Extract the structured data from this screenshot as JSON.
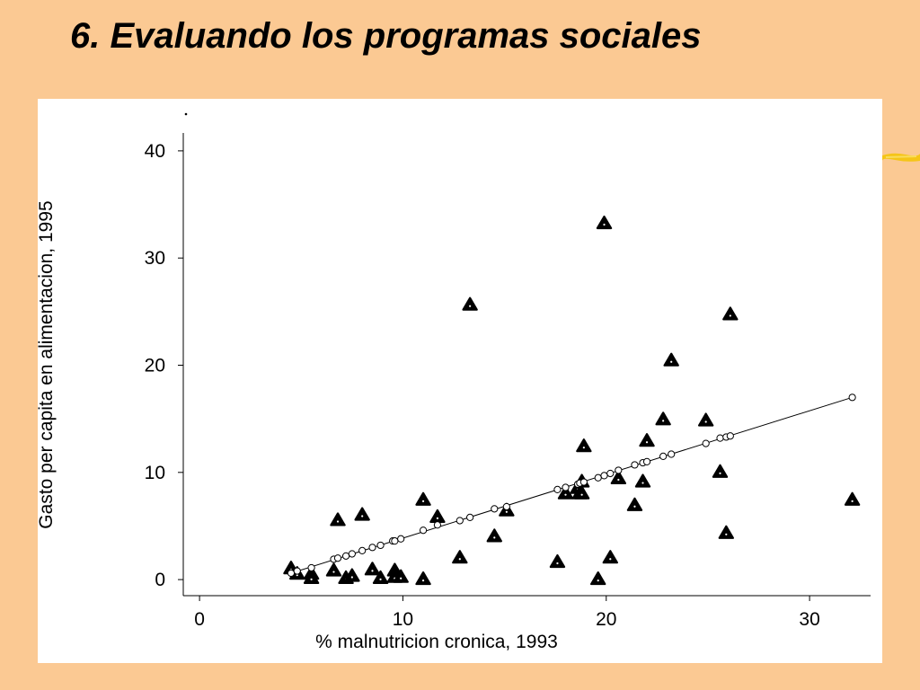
{
  "slide": {
    "title": "6.  Evaluando los programas sociales"
  },
  "colors": {
    "background": "#fbc993",
    "plot_background": "#ffffff",
    "accent_stroke": "#f5c518"
  },
  "chart_data": {
    "type": "scatter",
    "title": "",
    "xlabel": "% malnutricion cronica, 1993",
    "ylabel": "Gasto per capita en alimentacion, 1995",
    "xlim": [
      -0.8,
      33
    ],
    "ylim": [
      -1.5,
      41.5
    ],
    "xticks": [
      0,
      10,
      20,
      30
    ],
    "yticks": [
      0,
      10,
      20,
      30,
      40
    ],
    "grid": false,
    "legend": "none",
    "series": [
      {
        "marker": "triangle",
        "points": [
          [
            4.5,
            1.0
          ],
          [
            4.8,
            0.5
          ],
          [
            5.5,
            0.5
          ],
          [
            5.5,
            0.1
          ],
          [
            6.6,
            0.8
          ],
          [
            6.8,
            5.5
          ],
          [
            7.2,
            0.1
          ],
          [
            7.5,
            0.3
          ],
          [
            8.0,
            6.0
          ],
          [
            8.5,
            0.9
          ],
          [
            8.9,
            0.1
          ],
          [
            9.6,
            0.8
          ],
          [
            9.6,
            0.2
          ],
          [
            9.9,
            0.2
          ],
          [
            11.0,
            7.4
          ],
          [
            11.0,
            0.0
          ],
          [
            11.7,
            5.8
          ],
          [
            12.8,
            2.0
          ],
          [
            13.3,
            25.6
          ],
          [
            14.5,
            4.0
          ],
          [
            15.1,
            6.4
          ],
          [
            17.6,
            1.6
          ],
          [
            18.0,
            8.0
          ],
          [
            18.6,
            8.5
          ],
          [
            18.7,
            8.0
          ],
          [
            18.8,
            8.0
          ],
          [
            18.8,
            9.1
          ],
          [
            18.9,
            12.4
          ],
          [
            19.6,
            0.0
          ],
          [
            19.9,
            33.2
          ],
          [
            20.2,
            2.0
          ],
          [
            20.6,
            9.4
          ],
          [
            21.4,
            6.9
          ],
          [
            21.8,
            9.1
          ],
          [
            22.0,
            12.9
          ],
          [
            22.8,
            14.9
          ],
          [
            23.2,
            20.4
          ],
          [
            24.9,
            14.8
          ],
          [
            25.6,
            10.0
          ],
          [
            25.9,
            4.3
          ],
          [
            26.1,
            24.7
          ],
          [
            32.1,
            7.4
          ]
        ]
      },
      {
        "marker": "circle",
        "points": [
          [
            4.5,
            0.6
          ],
          [
            4.8,
            0.8
          ],
          [
            5.5,
            1.1
          ],
          [
            6.6,
            1.9
          ],
          [
            6.8,
            2.0
          ],
          [
            7.2,
            2.2
          ],
          [
            7.5,
            2.4
          ],
          [
            8.0,
            2.7
          ],
          [
            8.5,
            3.0
          ],
          [
            8.9,
            3.2
          ],
          [
            9.5,
            3.6
          ],
          [
            9.6,
            3.6
          ],
          [
            9.9,
            3.8
          ],
          [
            11.0,
            4.6
          ],
          [
            11.7,
            5.1
          ],
          [
            12.8,
            5.5
          ],
          [
            13.3,
            5.8
          ],
          [
            14.5,
            6.6
          ],
          [
            15.1,
            6.8
          ],
          [
            17.6,
            8.4
          ],
          [
            18.0,
            8.6
          ],
          [
            18.6,
            8.9
          ],
          [
            18.7,
            9.0
          ],
          [
            18.9,
            9.1
          ],
          [
            19.6,
            9.5
          ],
          [
            19.9,
            9.7
          ],
          [
            20.2,
            9.9
          ],
          [
            20.6,
            10.2
          ],
          [
            21.4,
            10.7
          ],
          [
            21.8,
            10.9
          ],
          [
            22.0,
            11.0
          ],
          [
            22.8,
            11.5
          ],
          [
            23.2,
            11.7
          ],
          [
            24.9,
            12.7
          ],
          [
            25.6,
            13.2
          ],
          [
            25.9,
            13.3
          ],
          [
            26.1,
            13.4
          ],
          [
            32.1,
            17.0
          ]
        ]
      }
    ],
    "fit_line": {
      "x": [
        4.5,
        32.1
      ],
      "y": [
        0.6,
        17.0
      ]
    }
  }
}
